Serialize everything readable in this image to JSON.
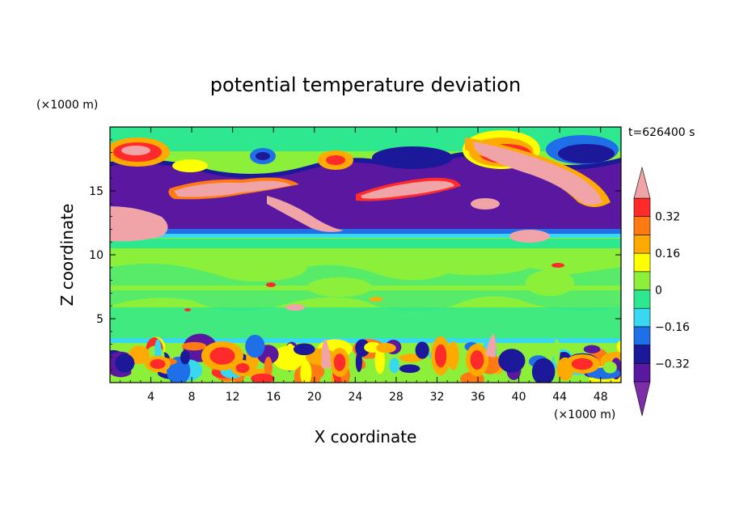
{
  "chart_data": {
    "type": "heatmap",
    "title": "potential temperature deviation",
    "xlabel": "X coordinate",
    "ylabel": "Z coordinate",
    "x_unit": "(×1000 m)",
    "y_unit": "(×1000 m)",
    "time_label": "t=626400 s",
    "xlim": [
      0,
      50
    ],
    "ylim": [
      0,
      20
    ],
    "x_ticks": [
      4,
      8,
      12,
      16,
      20,
      24,
      28,
      32,
      36,
      40,
      44,
      48
    ],
    "y_ticks": [
      5,
      10,
      15
    ],
    "colorbar": {
      "levels": [
        -0.4,
        -0.32,
        -0.24,
        -0.16,
        -0.08,
        0,
        0.08,
        0.16,
        0.24,
        0.32,
        0.4
      ],
      "labels": [
        "0.32",
        "0.16",
        "0",
        "−0.16",
        "−0.32"
      ],
      "label_values": [
        0.32,
        0.16,
        0,
        -0.16,
        -0.32
      ],
      "colors_bottom_to_top": [
        "#7b2ea8",
        "#5a18a0",
        "#1c189a",
        "#1f6fe8",
        "#37d8f0",
        "#2ee890",
        "#8cf03a",
        "#ffff00",
        "#ffaa00",
        "#ff7a12",
        "#ff2a2a",
        "#f0a4a8"
      ]
    },
    "field_description": [
      {
        "z_range": [
          0,
          3.5
        ],
        "pattern": "alternating warm and cold cells"
      },
      {
        "z_range": [
          3.5,
          11
        ],
        "pattern": "near zero, slightly positive"
      },
      {
        "z_range": [
          11,
          17
        ],
        "pattern": "strong negative band with embedded positive filaments"
      },
      {
        "z_range": [
          17,
          20
        ],
        "pattern": "positive and negative blobs"
      }
    ]
  }
}
